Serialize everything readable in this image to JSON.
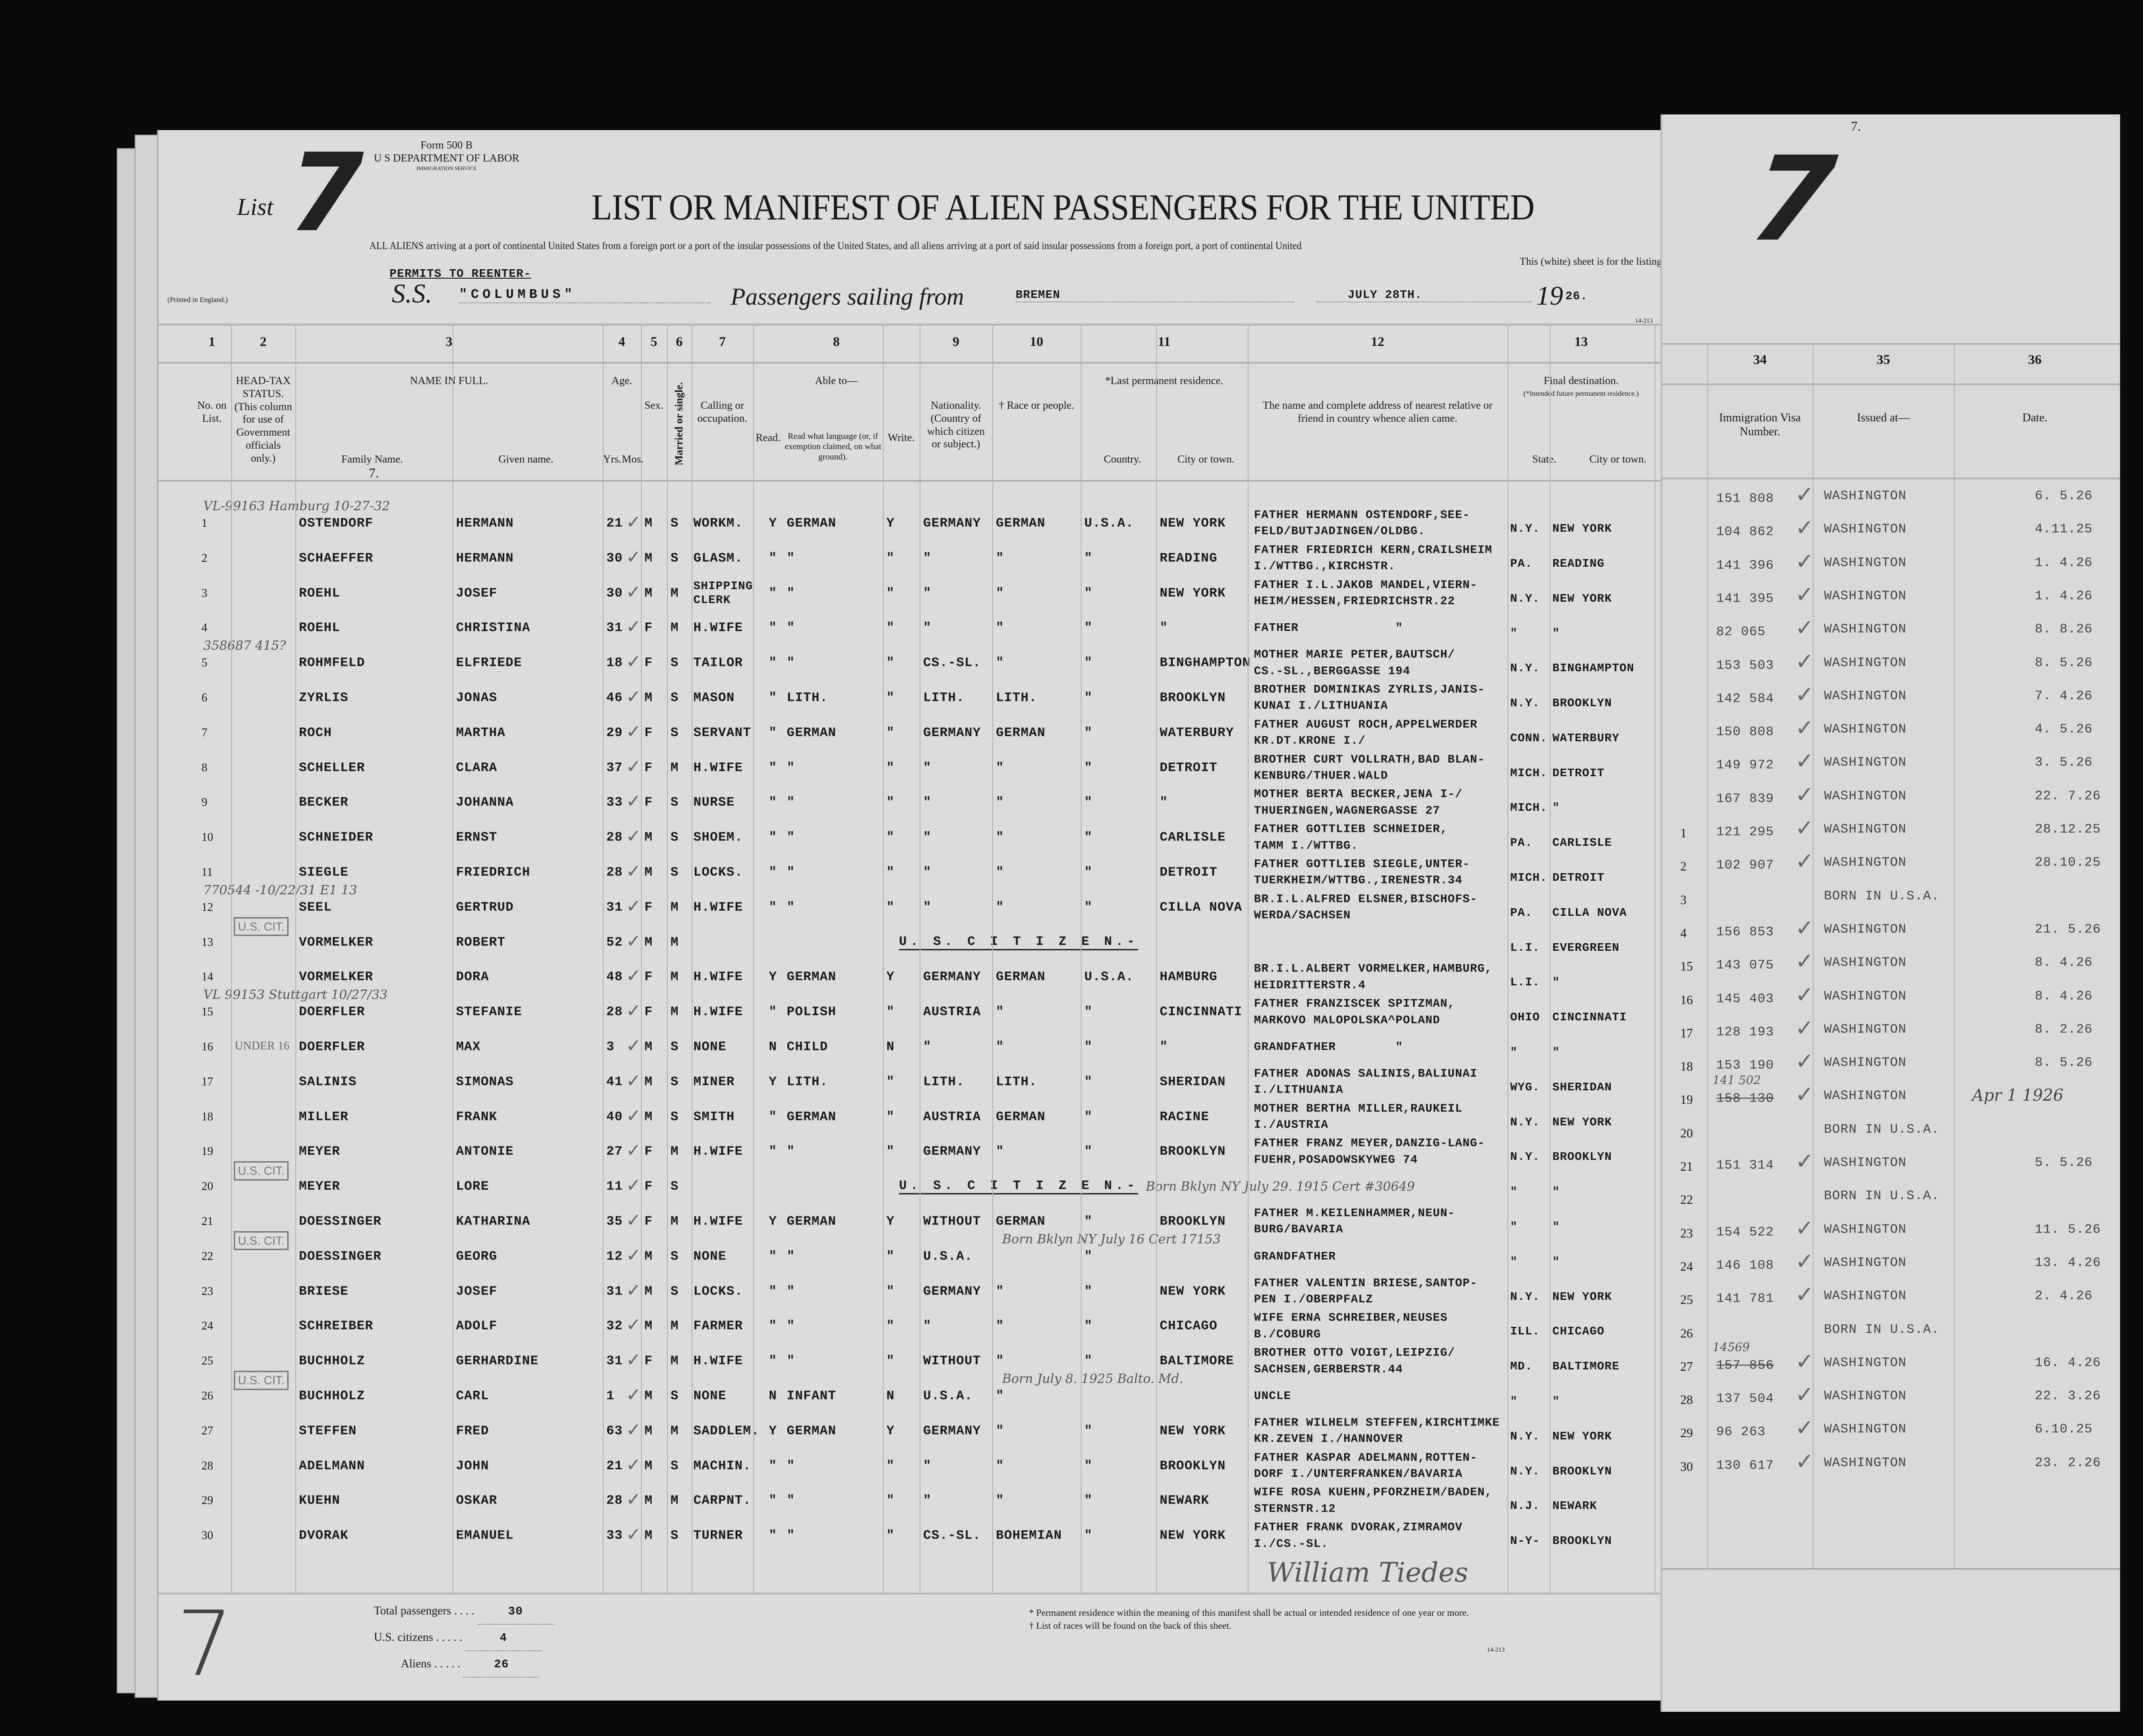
{
  "form": {
    "number": "Form 500 B",
    "department": "U S DEPARTMENT OF LABOR",
    "service": "IMMIGRATION SERVICE",
    "printed": "(Printed in England.)",
    "code": "14-213"
  },
  "list": {
    "label": "List",
    "number": "7"
  },
  "title": "LIST OR MANIFEST OF ALIEN PASSENGERS FOR THE UNITED",
  "subtitle": "ALL ALIENS arriving at a port of continental United States from a foreign port or a port of the insular possessions of the United States, and all aliens arriving at a port of said insular possessions from a foreign port, a port of continental United",
  "sheet_note": "This (white) sheet is for the listing of",
  "permits_note": "PERMITS TO REENTER-",
  "voyage": {
    "ss_label": "S.S.",
    "ship": "\"COLUMBUS\"",
    "sailing_label": "Passengers sailing from",
    "port": "BREMEN",
    "date": "JULY 28TH.",
    "year_prefix": "19",
    "year_suffix": "26."
  },
  "columns": [
    {
      "num": "1",
      "label": "No. on List."
    },
    {
      "num": "2",
      "label": "HEAD-TAX STATUS. (This column for use of Government officials only.)"
    },
    {
      "num": "3",
      "label": "NAME IN FULL.",
      "sub": [
        "Family Name.",
        "Given name."
      ],
      "note": "7."
    },
    {
      "num": "4",
      "label": "Age.",
      "sub": [
        "Yrs.",
        "Mos."
      ]
    },
    {
      "num": "5",
      "label": "Sex."
    },
    {
      "num": "6",
      "label": "Married or single."
    },
    {
      "num": "7",
      "label": "Calling or occupation."
    },
    {
      "num": "8",
      "label": "Able to—",
      "sub": [
        "Read.",
        "Read what language (or, if exemption claimed, on what ground).",
        "Write."
      ]
    },
    {
      "num": "9",
      "label": "Nationality. (Country of which citizen or subject.)"
    },
    {
      "num": "10",
      "label": "† Race or people."
    },
    {
      "num": "11",
      "label": "*Last permanent residence.",
      "sub": [
        "Country.",
        "City or town."
      ]
    },
    {
      "num": "12",
      "label": "The name and complete address of nearest relative or friend in country whence alien came."
    },
    {
      "num": "13",
      "label": "Final destination.",
      "note": "(*Intended future permanent residence.)",
      "sub": [
        "State.",
        "City or town."
      ]
    }
  ],
  "rows": [
    {
      "no": "1",
      "family": "OSTENDORF",
      "given": "HERMANN",
      "age": "21",
      "sex": "M",
      "ms": "S",
      "occ": "WORKM.",
      "read": "Y",
      "lang": "GERMAN",
      "write": "Y",
      "nat": "GERMANY",
      "race": "GERMAN",
      "country": "U.S.A.",
      "city": "NEW YORK",
      "relative": "FATHER HERMANN OSTENDORF,SEE-\nFELD/BUTJADINGEN/OLDBG.",
      "state": "N.Y.",
      "dest": "NEW YORK"
    },
    {
      "no": "2",
      "family": "SCHAEFFER",
      "given": "HERMANN",
      "age": "30",
      "sex": "M",
      "ms": "S",
      "occ": "GLASM.",
      "read": "\"",
      "lang": "\"",
      "write": "\"",
      "nat": "\"",
      "race": "\"",
      "country": "\"",
      "city": "READING",
      "relative": "FATHER FRIEDRICH KERN,CRAILSHEIM\nI./WTTBG.,KIRCHSTR.",
      "state": "PA.",
      "dest": "READING"
    },
    {
      "no": "3",
      "family": "ROEHL",
      "given": "JOSEF",
      "age": "30",
      "sex": "M",
      "ms": "M",
      "occ": "SHIPPING\nCLERK",
      "read": "\"",
      "lang": "\"",
      "write": "\"",
      "nat": "\"",
      "race": "\"",
      "country": "\"",
      "city": "NEW YORK",
      "relative": "FATHER I.L.JAKOB MANDEL,VIERN-\nHEIM/HESSEN,FRIEDRICHSTR.22",
      "state": "N.Y.",
      "dest": "NEW YORK"
    },
    {
      "no": "4",
      "family": "ROEHL",
      "given": "CHRISTINA",
      "age": "31",
      "sex": "F",
      "ms": "M",
      "occ": "H.WIFE",
      "read": "\"",
      "lang": "\"",
      "write": "\"",
      "nat": "\"",
      "race": "\"",
      "country": "\"",
      "city": "\"",
      "relative": "FATHER             \"",
      "state": "\"",
      "dest": "\""
    },
    {
      "no": "5",
      "family": "ROHMFELD",
      "given": "ELFRIEDE",
      "age": "18",
      "sex": "F",
      "ms": "S",
      "occ": "TAILOR",
      "read": "\"",
      "lang": "\"",
      "write": "\"",
      "nat": "CS.-SL.",
      "race": "\"",
      "country": "\"",
      "city": "BINGHAMPTON",
      "relative": "MOTHER MARIE PETER,BAUTSCH/\nCS.-SL.,BERGGASSE 194",
      "state": "N.Y.",
      "dest": "BINGHAMPTON"
    },
    {
      "no": "6",
      "family": "ZYRLIS",
      "given": "JONAS",
      "age": "46",
      "sex": "M",
      "ms": "S",
      "occ": "MASON",
      "read": "\"",
      "lang": "LITH.",
      "write": "\"",
      "nat": "LITH.",
      "race": "LITH.",
      "country": "\"",
      "city": "BROOKLYN",
      "relative": "BROTHER DOMINIKAS ZYRLIS,JANIS-\nKUNAI I./LITHUANIA",
      "state": "N.Y.",
      "dest": "BROOKLYN"
    },
    {
      "no": "7",
      "family": "ROCH",
      "given": "MARTHA",
      "age": "29",
      "sex": "F",
      "ms": "S",
      "occ": "SERVANT",
      "read": "\"",
      "lang": "GERMAN",
      "write": "\"",
      "nat": "GERMANY",
      "race": "GERMAN",
      "country": "\"",
      "city": "WATERBURY",
      "relative": "FATHER AUGUST ROCH,APPELWERDER\nKR.DT.KRONE I./",
      "state": "CONN.",
      "dest": "WATERBURY"
    },
    {
      "no": "8",
      "family": "SCHELLER",
      "given": "CLARA",
      "age": "37",
      "sex": "F",
      "ms": "M",
      "occ": "H.WIFE",
      "read": "\"",
      "lang": "\"",
      "write": "\"",
      "nat": "\"",
      "race": "\"",
      "country": "\"",
      "city": "DETROIT",
      "relative": "BROTHER CURT VOLLRATH,BAD BLAN-\nKENBURG/THUER.WALD",
      "state": "MICH.",
      "dest": "DETROIT"
    },
    {
      "no": "9",
      "family": "BECKER",
      "given": "JOHANNA",
      "age": "33",
      "sex": "F",
      "ms": "S",
      "occ": "NURSE",
      "read": "\"",
      "lang": "\"",
      "write": "\"",
      "nat": "\"",
      "race": "\"",
      "country": "\"",
      "city": "\"",
      "relative": "MOTHER BERTA BECKER,JENA I-/\nTHUERINGEN,WAGNERGASSE 27",
      "state": "MICH.",
      "dest": "\""
    },
    {
      "no": "10",
      "family": "SCHNEIDER",
      "given": "ERNST",
      "age": "28",
      "sex": "M",
      "ms": "S",
      "occ": "SHOEM.",
      "read": "\"",
      "lang": "\"",
      "write": "\"",
      "nat": "\"",
      "race": "\"",
      "country": "\"",
      "city": "CARLISLE",
      "relative": "FATHER GOTTLIEB SCHNEIDER,\nTAMM I./WTTBG.",
      "state": "PA.",
      "dest": "CARLISLE"
    },
    {
      "no": "11",
      "family": "SIEGLE",
      "given": "FRIEDRICH",
      "age": "28",
      "sex": "M",
      "ms": "S",
      "occ": "LOCKS.",
      "read": "\"",
      "lang": "\"",
      "write": "\"",
      "nat": "\"",
      "race": "\"",
      "country": "\"",
      "city": "DETROIT",
      "relative": "FATHER GOTTLIEB SIEGLE,UNTER-\nTUERKHEIM/WTTBG.,IRENESTR.34",
      "state": "MICH.",
      "dest": "DETROIT"
    },
    {
      "no": "12",
      "family": "SEEL",
      "given": "GERTRUD",
      "age": "31",
      "sex": "F",
      "ms": "M",
      "occ": "H.WIFE",
      "read": "\"",
      "lang": "\"",
      "write": "\"",
      "nat": "\"",
      "race": "\"",
      "country": "\"",
      "city": "CILLA NOVA",
      "relative": "BR.I.L.ALFRED ELSNER,BISCHOFS-\nWERDA/SACHSEN",
      "state": "PA.",
      "dest": "CILLA NOVA"
    },
    {
      "no": "13",
      "family": "VORMELKER",
      "given": "ROBERT",
      "age": "52",
      "sex": "M",
      "ms": "M",
      "citizen": "U. S. C I T I Z E N.-",
      "state": "L.I.",
      "dest": "EVERGREEN"
    },
    {
      "no": "14",
      "family": "VORMELKER",
      "given": "DORA",
      "age": "48",
      "sex": "F",
      "ms": "M",
      "occ": "H.WIFE",
      "read": "Y",
      "lang": "GERMAN",
      "write": "Y",
      "nat": "GERMANY",
      "race": "GERMAN",
      "country": "U.S.A.",
      "city": "HAMBURG",
      "relative": "BR.I.L.ALBERT VORMELKER,HAMBURG,\nHEIDRITTERSTR.4",
      "state": "L.I.",
      "dest": "\""
    },
    {
      "no": "15",
      "family": "DOERFLER",
      "given": "STEFANIE",
      "age": "28",
      "sex": "F",
      "ms": "M",
      "occ": "H.WIFE",
      "read": "\"",
      "lang": "POLISH",
      "write": "\"",
      "nat": "AUSTRIA",
      "race": "\"",
      "country": "\"",
      "city": "CINCINNATI",
      "relative": "FATHER FRANZISCEK SPITZMAN,\nMARKOVO MALOPOLSKA^POLAND",
      "state": "OHIO",
      "dest": "CINCINNATI"
    },
    {
      "no": "16",
      "family": "DOERFLER",
      "given": "MAX",
      "age": "3",
      "sex": "M",
      "ms": "S",
      "occ": "NONE",
      "read": "N",
      "lang": "CHILD",
      "write": "N",
      "nat": "\"",
      "race": "\"",
      "country": "\"",
      "city": "\"",
      "relative": "GRANDFATHER        \"",
      "state": "\"",
      "dest": "\""
    },
    {
      "no": "17",
      "family": "SALINIS",
      "given": "SIMONAS",
      "age": "41",
      "sex": "M",
      "ms": "S",
      "occ": "MINER",
      "read": "Y",
      "lang": "LITH.",
      "write": "\"",
      "nat": "LITH.",
      "race": "LITH.",
      "country": "\"",
      "city": "SHERIDAN",
      "relative": "FATHER ADONAS SALINIS,BALIUNAI\nI./LITHUANIA",
      "state": "WYG.",
      "dest": "SHERIDAN"
    },
    {
      "no": "18",
      "family": "MILLER",
      "given": "FRANK",
      "age": "40",
      "sex": "M",
      "ms": "S",
      "occ": "SMITH",
      "read": "\"",
      "lang": "GERMAN",
      "write": "\"",
      "nat": "AUSTRIA",
      "race": "GERMAN",
      "country": "\"",
      "city": "RACINE",
      "relative": "MOTHER BERTHA MILLER,RAUKEIL\nI./AUSTRIA",
      "state": "N.Y.",
      "dest": "NEW YORK"
    },
    {
      "no": "19",
      "family": "MEYER",
      "given": "ANTONIE",
      "age": "27",
      "sex": "F",
      "ms": "M",
      "occ": "H.WIFE",
      "read": "\"",
      "lang": "\"",
      "write": "\"",
      "nat": "GERMANY",
      "race": "\"",
      "country": "\"",
      "city": "BROOKLYN",
      "relative": "FATHER FRANZ MEYER,DANZIG-LANG-\nFUEHR,POSADOWSKYWEG 74",
      "state": "N.Y.",
      "dest": "BROOKLYN"
    },
    {
      "no": "20",
      "family": "MEYER",
      "given": "LORE",
      "age": "11",
      "sex": "F",
      "ms": "S",
      "citizen": "U. S. C I T I Z E N.-",
      "state": "\"",
      "dest": "\""
    },
    {
      "no": "21",
      "family": "DOESSINGER",
      "given": "KATHARINA",
      "age": "35",
      "sex": "F",
      "ms": "M",
      "occ": "H.WIFE",
      "read": "Y",
      "lang": "GERMAN",
      "write": "Y",
      "nat": "WITHOUT",
      "race": "GERMAN",
      "country": "\"",
      "city": "BROOKLYN",
      "relative": "FATHER M.KEILENHAMMER,NEUN-\nBURG/BAVARIA",
      "state": "\"",
      "dest": "\""
    },
    {
      "no": "22",
      "family": "DOESSINGER",
      "given": "GEORG",
      "age": "12",
      "sex": "M",
      "ms": "S",
      "occ": "NONE",
      "read": "\"",
      "lang": "\"",
      "write": "\"",
      "nat": "U.S.A.",
      "race": "",
      "country": "\"",
      "city": "",
      "relative": "GRANDFATHER",
      "state": "\"",
      "dest": "\""
    },
    {
      "no": "23",
      "family": "BRIESE",
      "given": "JOSEF",
      "age": "31",
      "sex": "M",
      "ms": "S",
      "occ": "LOCKS.",
      "read": "\"",
      "lang": "\"",
      "write": "\"",
      "nat": "GERMANY",
      "race": "\"",
      "country": "\"",
      "city": "NEW YORK",
      "relative": "FATHER VALENTIN BRIESE,SANTOP-\nPEN I./OBERPFALZ",
      "state": "N.Y.",
      "dest": "NEW YORK"
    },
    {
      "no": "24",
      "family": "SCHREIBER",
      "given": "ADOLF",
      "age": "32",
      "sex": "M",
      "ms": "M",
      "occ": "FARMER",
      "read": "\"",
      "lang": "\"",
      "write": "\"",
      "nat": "\"",
      "race": "\"",
      "country": "\"",
      "city": "CHICAGO",
      "relative": "WIFE ERNA SCHREIBER,NEUSES\nB./COBURG",
      "state": "ILL.",
      "dest": "CHICAGO"
    },
    {
      "no": "25",
      "family": "BUCHHOLZ",
      "given": "GERHARDINE",
      "age": "31",
      "sex": "F",
      "ms": "M",
      "occ": "H.WIFE",
      "read": "\"",
      "lang": "\"",
      "write": "\"",
      "nat": "WITHOUT",
      "race": "\"",
      "country": "\"",
      "city": "BALTIMORE",
      "relative": "BROTHER OTTO VOIGT,LEIPZIG/\nSACHSEN,GERBERSTR.44",
      "state": "MD.",
      "dest": "BALTIMORE"
    },
    {
      "no": "26",
      "family": "BUCHHOLZ",
      "given": "CARL",
      "age": "1",
      "sex": "M",
      "ms": "S",
      "occ": "NONE",
      "read": "N",
      "lang": "INFANT",
      "write": "N",
      "nat": "U.S.A.",
      "race": "\"",
      "country": "",
      "city": "",
      "relative": "UNCLE",
      "state": "\"",
      "dest": "\""
    },
    {
      "no": "27",
      "family": "STEFFEN",
      "given": "FRED",
      "age": "63",
      "sex": "M",
      "ms": "M",
      "occ": "SADDLEM.",
      "read": "Y",
      "lang": "GERMAN",
      "write": "Y",
      "nat": "GERMANY",
      "race": "\"",
      "country": "\"",
      "city": "NEW YORK",
      "relative": "FATHER WILHELM STEFFEN,KIRCHTIMKE\nKR.ZEVEN I./HANNOVER",
      "state": "N.Y.",
      "dest": "NEW YORK"
    },
    {
      "no": "28",
      "family": "ADELMANN",
      "given": "JOHN",
      "age": "21",
      "sex": "M",
      "ms": "S",
      "occ": "MACHIN.",
      "read": "\"",
      "lang": "\"",
      "write": "\"",
      "nat": "\"",
      "race": "\"",
      "country": "\"",
      "city": "BROOKLYN",
      "relative": "FATHER KASPAR ADELMANN,ROTTEN-\nDORF I./UNTERFRANKEN/BAVARIA",
      "state": "N.Y.",
      "dest": "BROOKLYN"
    },
    {
      "no": "29",
      "family": "KUEHN",
      "given": "OSKAR",
      "age": "28",
      "sex": "M",
      "ms": "M",
      "occ": "CARPNT.",
      "read": "\"",
      "lang": "\"",
      "write": "\"",
      "nat": "\"",
      "race": "\"",
      "country": "\"",
      "city": "NEWARK",
      "relative": "WIFE ROSA KUEHN,PFORZHEIM/BADEN,\nSTERNSTR.12",
      "state": "N.J.",
      "dest": "NEWARK"
    },
    {
      "no": "30",
      "family": "DVORAK",
      "given": "EMANUEL",
      "age": "33",
      "sex": "M",
      "ms": "S",
      "occ": "TURNER",
      "read": "\"",
      "lang": "\"",
      "write": "\"",
      "nat": "CS.-SL.",
      "race": "BOHEMIAN",
      "country": "\"",
      "city": "NEW YORK",
      "relative": "FATHER FRANK DVORAK,ZIMRAMOV\nI./CS.-SL.",
      "state": "N-Y-",
      "dest": "BROOKLYN"
    }
  ],
  "stamps": {
    "us_cit": "U.S. CIT.",
    "under16": "UNDER 16",
    "us_cit_rows": [
      13,
      20,
      22,
      26
    ],
    "under16_row": 16
  },
  "handwritten": [
    {
      "row": 1,
      "text": "VL-99163 Hamburg 10-27-32"
    },
    {
      "row": 5,
      "text": "358687 415?"
    },
    {
      "row": 12,
      "text": "770544 -10/22/31 E1 13"
    },
    {
      "row": 15,
      "text": "VL 99153 Stuttgart 10/27/33"
    },
    {
      "row": 20,
      "text": "Born Bklyn NY July 29. 1915 Cert #30649"
    },
    {
      "row": 22,
      "text": "Born Bklyn NY July 16 Cert 17153"
    },
    {
      "row": 26,
      "text": "Born July 8. 1925 Balto. Md."
    }
  ],
  "signature": "William Tiedes",
  "totals": {
    "passengers_label": "Total passengers",
    "passengers": "30",
    "citizens_label": "U.S. citizens",
    "citizens": "4",
    "aliens_label": "Aliens",
    "aliens": "26"
  },
  "footnotes": [
    "* Permanent residence within the meaning of this manifest shall be actual or intended residence of one year or more.",
    "† List of races will be found on the back of this sheet."
  ],
  "right_sheet": {
    "list_number": "7",
    "top_mark": "7.",
    "columns": [
      {
        "num": "34",
        "label": "Immigration Visa Number."
      },
      {
        "num": "35",
        "label": "Issued at—"
      },
      {
        "num": "36",
        "label": "Date."
      }
    ],
    "rows": [
      {
        "n": "",
        "visa": "151 808",
        "issued": "WASHINGTON",
        "date": "6. 5.26"
      },
      {
        "n": "",
        "visa": "104 862",
        "issued": "WASHINGTON",
        "date": "4.11.25"
      },
      {
        "n": "",
        "visa": "141 396",
        "issued": "WASHINGTON",
        "date": "1. 4.26"
      },
      {
        "n": "",
        "visa": "141 395",
        "issued": "WASHINGTON",
        "date": "1. 4.26"
      },
      {
        "n": "",
        "visa": "82 065",
        "issued": "WASHINGTON",
        "date": "8. 8.26"
      },
      {
        "n": "",
        "visa": "153 503",
        "issued": "WASHINGTON",
        "date": "8. 5.26"
      },
      {
        "n": "",
        "visa": "142 584",
        "issued": "WASHINGTON",
        "date": "7. 4.26"
      },
      {
        "n": "",
        "visa": "150 808",
        "issued": "WASHINGTON",
        "date": "4. 5.26"
      },
      {
        "n": "",
        "visa": "149 972",
        "issued": "WASHINGTON",
        "date": "3. 5.26"
      },
      {
        "n": "",
        "visa": "167 839",
        "issued": "WASHINGTON",
        "date": "22. 7.26"
      },
      {
        "n": "1",
        "visa": "121 295",
        "issued": "WASHINGTON",
        "date": "28.12.25"
      },
      {
        "n": "2",
        "visa": "102 907",
        "issued": "WASHINGTON",
        "date": "28.10.25"
      },
      {
        "n": "3",
        "visa": "",
        "issued": "BORN IN U.S.A.",
        "date": ""
      },
      {
        "n": "4",
        "visa": "156 853",
        "issued": "WASHINGTON",
        "date": "21. 5.26"
      },
      {
        "n": "15",
        "visa": "143 075",
        "issued": "WASHINGTON",
        "date": "8. 4.26"
      },
      {
        "n": "16",
        "visa": "145 403",
        "issued": "WASHINGTON",
        "date": "8. 4.26"
      },
      {
        "n": "17",
        "visa": "128 193",
        "issued": "WASHINGTON",
        "date": "8. 2.26"
      },
      {
        "n": "18",
        "visa": "153 190",
        "issued": "WASHINGTON",
        "date": "8. 5.26"
      },
      {
        "n": "19",
        "visa": "158 130",
        "visa_hand": "141 502",
        "issued": "WASHINGTON",
        "date": "Apr 1 1926"
      },
      {
        "n": "20",
        "visa": "",
        "issued": "BORN IN U.S.A.",
        "date": ""
      },
      {
        "n": "21",
        "visa": "151 314",
        "issued": "WASHINGTON",
        "date": "5. 5.26"
      },
      {
        "n": "22",
        "visa": "",
        "issued": "BORN IN U.S.A.",
        "date": ""
      },
      {
        "n": "23",
        "visa": "154 522",
        "issued": "WASHINGTON",
        "date": "11. 5.26"
      },
      {
        "n": "24",
        "visa": "146 108",
        "issued": "WASHINGTON",
        "date": "13. 4.26"
      },
      {
        "n": "25",
        "visa": "141 781",
        "issued": "WASHINGTON",
        "date": "2. 4.26"
      },
      {
        "n": "26",
        "visa": "",
        "issued": "BORN IN U.S.A.",
        "date": ""
      },
      {
        "n": "27",
        "visa": "157 856",
        "visa_hand": "14569",
        "issued": "WASHINGTON",
        "date": "16. 4.26"
      },
      {
        "n": "28",
        "visa": "137 504",
        "issued": "WASHINGTON",
        "date": "22. 3.26"
      },
      {
        "n": "29",
        "visa": "96 263",
        "issued": "WASHINGTON",
        "date": "6.10.25"
      },
      {
        "n": "30",
        "visa": "130 617",
        "issued": "WASHINGTON",
        "date": "23. 2.26"
      }
    ]
  }
}
